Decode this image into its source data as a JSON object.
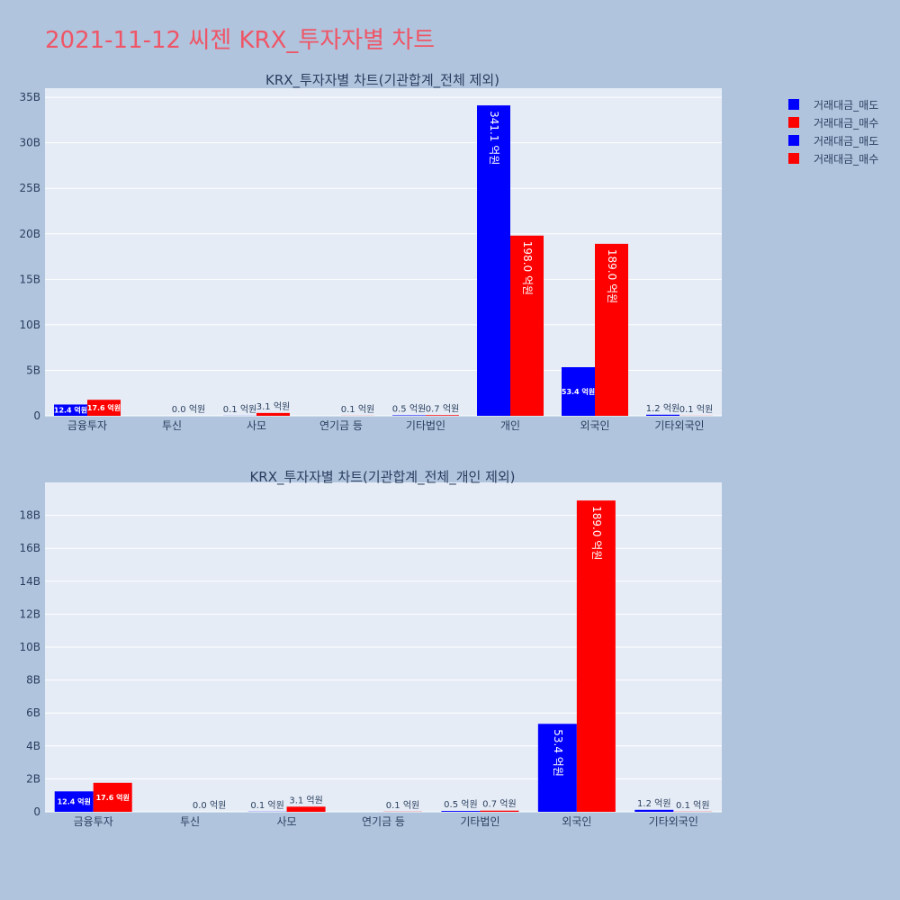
{
  "page": {
    "title": "2021-11-12 씨젠 KRX_투자자별 차트"
  },
  "legend": [
    {
      "label": "거래대금_매도",
      "color": "#0000ff"
    },
    {
      "label": "거래대금_매수",
      "color": "#ff0000"
    },
    {
      "label": "거래대금_매도",
      "color": "#0000ff"
    },
    {
      "label": "거래대금_매수",
      "color": "#ff0000"
    }
  ],
  "chart_data": [
    {
      "type": "bar",
      "title": "KRX_투자자별 차트(기관합계_전체 제외)",
      "categories": [
        "금융투자",
        "투신",
        "사모",
        "연기금 등",
        "기타법인",
        "개인",
        "외국인",
        "기타외국인"
      ],
      "ylim": [
        0,
        36000000000
      ],
      "yticks": [
        0,
        5000000000,
        10000000000,
        15000000000,
        20000000000,
        25000000000,
        30000000000,
        35000000000
      ],
      "yticklabels": [
        "0",
        "5B",
        "10B",
        "15B",
        "20B",
        "25B",
        "30B",
        "35B"
      ],
      "grid": true,
      "series": [
        {
          "name": "거래대금_매도",
          "color": "#0000ff",
          "values": [
            1240000000,
            0,
            10000000,
            0,
            50000000,
            34110000000,
            5340000000,
            120000000
          ],
          "labels": [
            "12.4 억원",
            "",
            "0.1 억원",
            "",
            "0.5 억원",
            "341.1 억원",
            "53.4 억원",
            "1.2 억원"
          ]
        },
        {
          "name": "거래대금_매수",
          "color": "#ff0000",
          "values": [
            1760000000,
            0,
            310000000,
            10000000,
            70000000,
            19800000000,
            18900000000,
            10000000
          ],
          "labels": [
            "17.6 억원",
            "0.0 억원",
            "3.1 억원",
            "0.1 억원",
            "0.7 억원",
            "198.0 억원",
            "189.0 억원",
            "0.1 억원"
          ]
        }
      ]
    },
    {
      "type": "bar",
      "title": "KRX_투자자별 차트(기관합계_전체_개인 제외)",
      "categories": [
        "금융투자",
        "투신",
        "사모",
        "연기금 등",
        "기타법인",
        "외국인",
        "기타외국인"
      ],
      "ylim": [
        0,
        20000000000
      ],
      "yticks": [
        0,
        2000000000,
        4000000000,
        6000000000,
        8000000000,
        10000000000,
        12000000000,
        14000000000,
        16000000000,
        18000000000
      ],
      "yticklabels": [
        "0",
        "2B",
        "4B",
        "6B",
        "8B",
        "10B",
        "12B",
        "14B",
        "16B",
        "18B"
      ],
      "grid": true,
      "series": [
        {
          "name": "거래대금_매도",
          "color": "#0000ff",
          "values": [
            1240000000,
            0,
            10000000,
            0,
            50000000,
            5340000000,
            120000000
          ],
          "labels": [
            "12.4 억원",
            "",
            "0.1 억원",
            "",
            "0.5 억원",
            "53.4 억원",
            "1.2 억원"
          ]
        },
        {
          "name": "거래대금_매수",
          "color": "#ff0000",
          "values": [
            1760000000,
            0,
            310000000,
            10000000,
            70000000,
            18900000000,
            10000000
          ],
          "labels": [
            "17.6 억원",
            "0.0 억원",
            "3.1 억원",
            "0.1 억원",
            "0.7 억원",
            "189.0 억원",
            "0.1 억원"
          ]
        }
      ]
    }
  ]
}
